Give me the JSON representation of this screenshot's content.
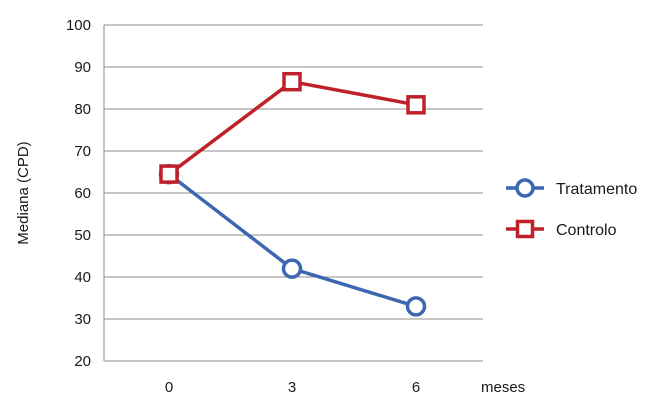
{
  "chart_data": {
    "type": "line",
    "title": "",
    "xlabel": "meses",
    "ylabel": "Mediana (CPD)",
    "x": [
      "0",
      "3",
      "6"
    ],
    "ylim": [
      20,
      100
    ],
    "yticks": [
      20,
      30,
      40,
      50,
      60,
      70,
      80,
      90,
      100
    ],
    "grid": true,
    "legend": "right",
    "series": [
      {
        "name": "Tratamento",
        "values": [
          64.5,
          42,
          33
        ],
        "marker": "circle",
        "color": "#3d67b0"
      },
      {
        "name": "Controlo",
        "values": [
          64.5,
          86.5,
          81
        ],
        "marker": "square",
        "color": "#c0202a"
      }
    ]
  }
}
